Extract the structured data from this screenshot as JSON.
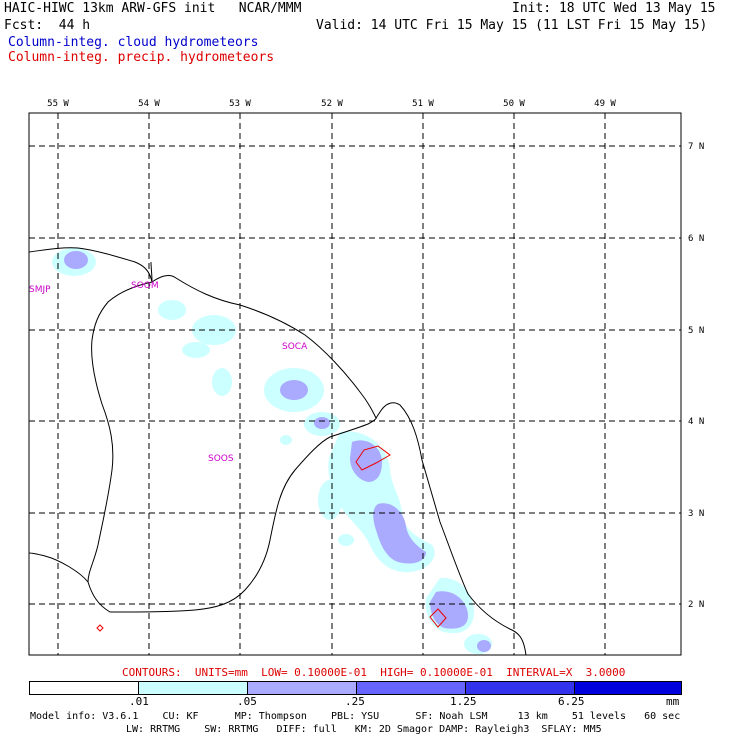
{
  "header": {
    "title": "HAIC-HIWC 13km ARW-GFS init   NCAR/MMM",
    "init": "Init: 18 UTC Wed 13 May 15",
    "fcst": "Fcst:  44 h",
    "valid": "Valid: 14 UTC Fri 15 May 15 (11 LST Fri 15 May 15)",
    "field1": "Column-integ. cloud hydrometeors",
    "field2": "Column-integ. precip. hydrometeors"
  },
  "map": {
    "lon_labels": [
      "55 W",
      "54 W",
      "53 W",
      "52 W",
      "51 W",
      "50 W",
      "49 W"
    ],
    "lat_labels": [
      "7 N",
      "6 N",
      "5 N",
      "4 N",
      "3 N",
      "2 N"
    ],
    "station_labels": [
      "SMJP",
      "SOOM",
      "SOCA",
      "SOOS"
    ]
  },
  "contours_note": "CONTOURS:  UNITS=mm  LOW= 0.10000E-01  HIGH= 0.10000E-01  INTERVAL=X  3.0000",
  "colorbar": {
    "ticks": [
      ".01",
      ".05",
      ".25",
      "1.25",
      "6.25"
    ],
    "unit": "mm",
    "colors": [
      "#ffffff",
      "#ccffff",
      "#aaaaff",
      "#6666ff",
      "#2222ee",
      "#0000dd"
    ]
  },
  "footer": {
    "line1": "Model info: V3.6.1    CU: KF      MP: Thompson    PBL: YSU      SF: Noah LSM     13 km    51 levels   60 sec",
    "line2": "LW: RRTMG    SW: RRTMG   DIFF: full   KM: 2D Smagor DAMP: Rayleigh3  SFLAY: MM5"
  }
}
